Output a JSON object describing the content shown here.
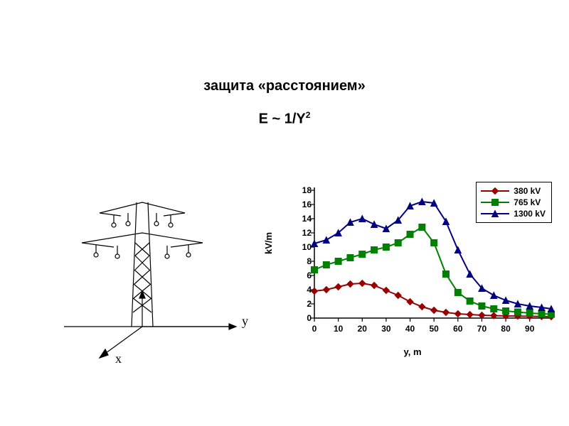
{
  "title": "защита «расстоянием»",
  "formula_prefix": "E ~ 1/Y",
  "formula_exp": "2",
  "tower_axes": {
    "y_label": "y",
    "x_label": "x"
  },
  "chart": {
    "type": "line-scatter",
    "ylabel": "kV/m",
    "xlabel": "y, m",
    "title_fontsize": 13,
    "label_fontsize": 13,
    "tick_fontsize": 12,
    "background_color": "#ffffff",
    "plot_border_color": "#000000",
    "line_width": 2,
    "marker_size": 9,
    "xlim": [
      0,
      99
    ],
    "ylim": [
      0,
      18
    ],
    "xticks": [
      0,
      10,
      20,
      30,
      40,
      50,
      60,
      70,
      80,
      90
    ],
    "yticks": [
      0,
      2,
      4,
      6,
      8,
      10,
      12,
      14,
      16,
      18
    ],
    "x_values": [
      0,
      5,
      10,
      15,
      20,
      25,
      30,
      35,
      40,
      45,
      50,
      55,
      60,
      65,
      70,
      75,
      80,
      85,
      90,
      95,
      99
    ],
    "series": [
      {
        "name": "380 kV",
        "color": "#990000",
        "marker": "diamond",
        "y": [
          3.8,
          4.0,
          4.4,
          4.8,
          4.9,
          4.6,
          3.9,
          3.2,
          2.3,
          1.6,
          1.1,
          0.8,
          0.6,
          0.5,
          0.4,
          0.35,
          0.3,
          0.28,
          0.25,
          0.22,
          0.2
        ]
      },
      {
        "name": "765 kV",
        "color": "#008000",
        "marker": "square",
        "y": [
          6.8,
          7.5,
          8.0,
          8.5,
          9.0,
          9.6,
          10.0,
          10.6,
          11.8,
          12.8,
          10.6,
          6.2,
          3.6,
          2.4,
          1.7,
          1.3,
          1.0,
          0.85,
          0.7,
          0.6,
          0.55
        ]
      },
      {
        "name": "1300 kV",
        "color": "#000080",
        "marker": "triangle",
        "y": [
          10.5,
          11.0,
          12.0,
          13.5,
          14.0,
          13.2,
          12.6,
          13.8,
          15.8,
          16.4,
          16.2,
          13.6,
          9.6,
          6.2,
          4.2,
          3.2,
          2.5,
          2.0,
          1.7,
          1.5,
          1.3
        ]
      }
    ],
    "legend": {
      "position": "top-right",
      "border_color": "#000000",
      "bg": "#ffffff"
    }
  }
}
